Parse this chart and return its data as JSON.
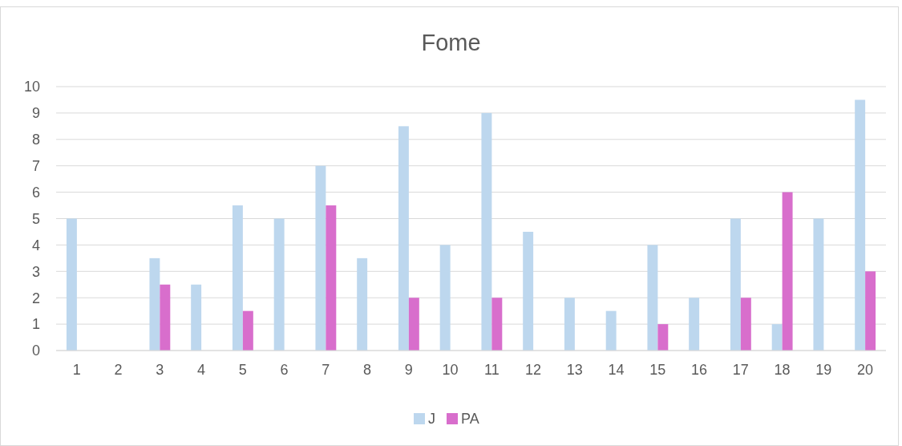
{
  "chart_data": {
    "type": "bar",
    "title": "Fome",
    "categories": [
      "1",
      "2",
      "3",
      "4",
      "5",
      "6",
      "7",
      "8",
      "9",
      "10",
      "11",
      "12",
      "13",
      "14",
      "15",
      "16",
      "17",
      "18",
      "19",
      "20"
    ],
    "series": [
      {
        "name": "J",
        "color": "#bdd7ee",
        "values": [
          5,
          0,
          3.5,
          2.5,
          5.5,
          5,
          7,
          3.5,
          8.5,
          4,
          9,
          4.5,
          2,
          1.5,
          4,
          2,
          5,
          1,
          5,
          9.5
        ]
      },
      {
        "name": "PA",
        "color": "#d86ecc",
        "values": [
          0,
          0,
          2.5,
          0,
          1.5,
          0,
          5.5,
          0,
          2,
          0,
          2,
          0,
          0,
          0,
          1,
          0,
          2,
          6,
          0,
          3
        ]
      }
    ],
    "ylim": [
      0,
      10
    ],
    "yticks": [
      0,
      1,
      2,
      3,
      4,
      5,
      6,
      7,
      8,
      9,
      10
    ],
    "grid": "y",
    "legend": "bottom"
  }
}
